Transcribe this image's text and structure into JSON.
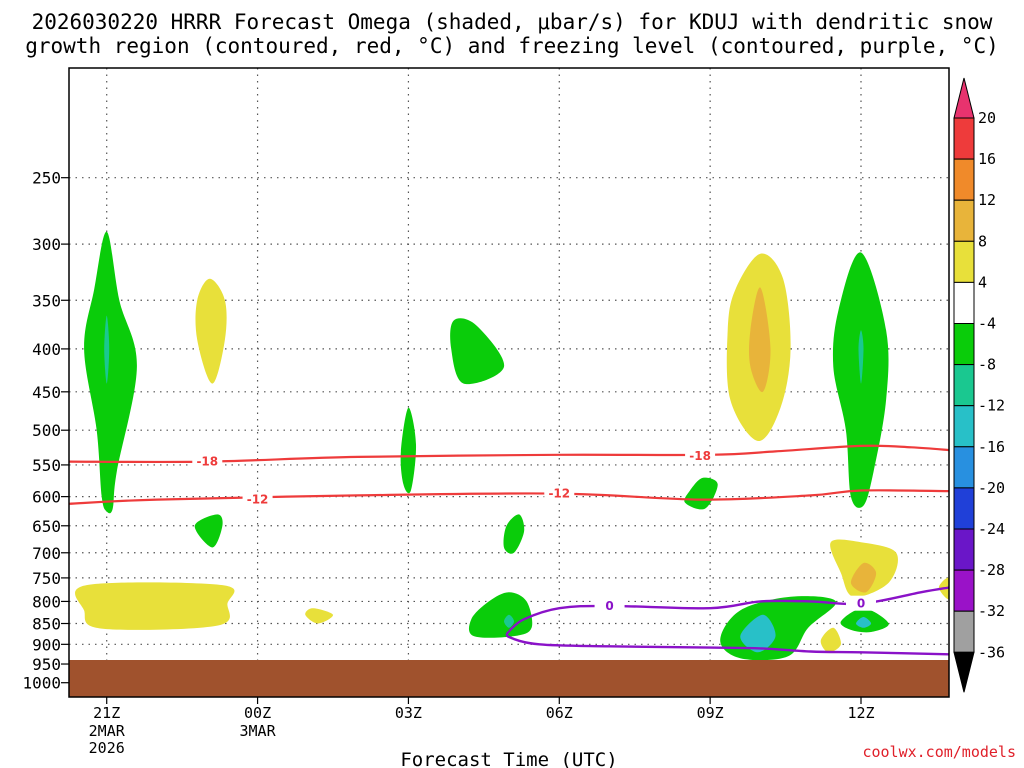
{
  "chart_data": {
    "type": "contour",
    "title_line1": "2026030220 HRRR Forecast Omega (shaded, μbar/s) for KDUJ with dendritic snow",
    "title_line2": "growth region (contoured, red, °C) and freezing level (contoured, purple, °C)",
    "xlabel": "Forecast Time (UTC)",
    "credit": "coolwx.com/models",
    "x_range_hours": [
      -0.75,
      16.75
    ],
    "y_levels_hpa": [
      250,
      300,
      350,
      400,
      450,
      500,
      550,
      600,
      650,
      700,
      750,
      800,
      850,
      900,
      950,
      1000
    ],
    "y_range_hpa": [
      185,
      1040
    ],
    "x_ticks": [
      {
        "hour": 0,
        "label": "21Z",
        "sub": [
          "2MAR",
          "2026"
        ]
      },
      {
        "hour": 3,
        "label": "00Z",
        "sub": [
          "3MAR"
        ]
      },
      {
        "hour": 6,
        "label": "03Z",
        "sub": []
      },
      {
        "hour": 9,
        "label": "06Z",
        "sub": []
      },
      {
        "hour": 12,
        "label": "09Z",
        "sub": []
      },
      {
        "hour": 15,
        "label": "12Z",
        "sub": []
      }
    ],
    "colorbar": {
      "labels": [
        "20",
        "16",
        "12",
        "8",
        "4",
        "-4",
        "-8",
        "-12",
        "-16",
        "-20",
        "-24",
        "-28",
        "-32",
        "-36"
      ],
      "colors": [
        "#e8336e",
        "#ee3b3b",
        "#f08a2a",
        "#e8b43a",
        "#e8e03a",
        "#ffffff",
        "#0acc0a",
        "#1ac890",
        "#28c0c8",
        "#2890e0",
        "#2040d8",
        "#6a16c8",
        "#9a12c8",
        "#a0a0a0",
        "#000000"
      ]
    },
    "omega_blobs": [
      {
        "name": "omega-blob-21z-upper",
        "value_range": "-4 to -8",
        "color": "#0acc0a",
        "pts": [
          [
            0,
            290
          ],
          [
            0.25,
            350
          ],
          [
            0.6,
            420
          ],
          [
            0.2,
            560
          ],
          [
            0.12,
            620
          ],
          [
            0,
            625
          ],
          [
            -0.1,
            600
          ],
          [
            -0.2,
            500
          ],
          [
            -0.45,
            400
          ],
          [
            -0.25,
            340
          ]
        ]
      },
      {
        "name": "omega-blob-21z-core",
        "value_range": "-8 to -12",
        "color": "#1ac890",
        "pts": [
          [
            0,
            365
          ],
          [
            0.05,
            400
          ],
          [
            0,
            440
          ],
          [
            -0.05,
            400
          ]
        ]
      },
      {
        "name": "omega-blob-2z-upward",
        "value_range": "4 to 8",
        "color": "#e8e03a",
        "pts": [
          [
            2.05,
            330
          ],
          [
            2.35,
            350
          ],
          [
            2.35,
            390
          ],
          [
            2.1,
            440
          ],
          [
            1.8,
            390
          ],
          [
            1.8,
            350
          ]
        ]
      },
      {
        "name": "omega-blob-21z-low",
        "value_range": "4 to 8",
        "color": "#e8e03a",
        "pts": [
          [
            -0.4,
            765
          ],
          [
            2.3,
            765
          ],
          [
            2.4,
            805
          ],
          [
            2.2,
            855
          ],
          [
            -0.1,
            862
          ],
          [
            -0.45,
            820
          ]
        ]
      },
      {
        "name": "omega-blob-02z-mid",
        "value_range": "-4 to -8",
        "color": "#0acc0a",
        "pts": [
          [
            2.2,
            630
          ],
          [
            2.3,
            650
          ],
          [
            2.1,
            690
          ],
          [
            1.75,
            650
          ]
        ]
      },
      {
        "name": "omega-blob-03z-narrow",
        "value_range": "-4 to -8",
        "color": "#0acc0a",
        "pts": [
          [
            6,
            470
          ],
          [
            6.15,
            520
          ],
          [
            6.05,
            590
          ],
          [
            5.9,
            580
          ],
          [
            5.85,
            530
          ]
        ]
      },
      {
        "name": "omega-blob-04z-small",
        "value_range": "4 to 8",
        "color": "#e8e03a",
        "pts": [
          [
            4.1,
            815
          ],
          [
            4.5,
            830
          ],
          [
            4.2,
            850
          ],
          [
            3.95,
            830
          ]
        ]
      },
      {
        "name": "omega-blob-07z-upper",
        "value_range": "-4 to -8",
        "color": "#0acc0a",
        "pts": [
          [
            6.9,
            370
          ],
          [
            7.35,
            375
          ],
          [
            7.9,
            420
          ],
          [
            7.1,
            440
          ],
          [
            6.85,
            400
          ]
        ]
      },
      {
        "name": "omega-blob-09z-mid",
        "value_range": "-4 to -8",
        "color": "#0acc0a",
        "pts": [
          [
            11.85,
            570
          ],
          [
            12.15,
            580
          ],
          [
            11.9,
            620
          ],
          [
            11.5,
            610
          ],
          [
            11.6,
            590
          ]
        ]
      },
      {
        "name": "omega-blob-08z-mid",
        "value_range": "-4 to -8",
        "color": "#0acc0a",
        "pts": [
          [
            8.2,
            630
          ],
          [
            8.3,
            660
          ],
          [
            8.1,
            700
          ],
          [
            7.9,
            690
          ],
          [
            7.95,
            650
          ]
        ]
      },
      {
        "name": "omega-blob-08z-low",
        "value_range": "-4 to -8",
        "color": "#0acc0a",
        "pts": [
          [
            8,
            780
          ],
          [
            8.35,
            800
          ],
          [
            8.45,
            860
          ],
          [
            8.1,
            880
          ],
          [
            7.3,
            880
          ],
          [
            7.25,
            840
          ],
          [
            7.6,
            800
          ]
        ]
      },
      {
        "name": "omega-blob-08z-low-core",
        "value_range": "-8 to -12",
        "color": "#1ac890",
        "pts": [
          [
            8,
            830
          ],
          [
            8.1,
            845
          ],
          [
            8,
            860
          ],
          [
            7.9,
            845
          ]
        ]
      },
      {
        "name": "omega-blob-10z-upward",
        "value_range": "4 to 8",
        "color": "#e8e03a",
        "pts": [
          [
            13,
            308
          ],
          [
            13.45,
            330
          ],
          [
            13.6,
            400
          ],
          [
            13.4,
            470
          ],
          [
            12.95,
            515
          ],
          [
            12.4,
            460
          ],
          [
            12.35,
            380
          ],
          [
            12.5,
            340
          ]
        ]
      },
      {
        "name": "omega-blob-10z-upward-core",
        "value_range": "8 to 12",
        "color": "#e8b43a",
        "pts": [
          [
            13,
            338
          ],
          [
            13.2,
            400
          ],
          [
            13.05,
            450
          ],
          [
            12.8,
            420
          ],
          [
            12.8,
            380
          ]
        ]
      },
      {
        "name": "omega-blob-10z-low",
        "value_range": "-4 to -8",
        "color": "#0acc0a",
        "pts": [
          [
            13.6,
            790
          ],
          [
            14.5,
            800
          ],
          [
            13.95,
            860
          ],
          [
            13.55,
            930
          ],
          [
            12.6,
            935
          ],
          [
            12.2,
            890
          ],
          [
            12.6,
            820
          ]
        ]
      },
      {
        "name": "omega-blob-10z-low-core",
        "value_range": "-12 to -16",
        "color": "#28c0c8",
        "pts": [
          [
            13.05,
            830
          ],
          [
            13.3,
            880
          ],
          [
            12.95,
            920
          ],
          [
            12.6,
            880
          ]
        ]
      },
      {
        "name": "omega-blob-11z-small",
        "value_range": "4 to 8",
        "color": "#e8e03a",
        "pts": [
          [
            14.45,
            860
          ],
          [
            14.6,
            900
          ],
          [
            14.35,
            920
          ],
          [
            14.2,
            890
          ]
        ]
      },
      {
        "name": "omega-blob-12z-upper",
        "value_range": "-4 to -8",
        "color": "#0acc0a",
        "pts": [
          [
            15,
            307
          ],
          [
            15.5,
            380
          ],
          [
            15.5,
            460
          ],
          [
            15.25,
            560
          ],
          [
            15.05,
            615
          ],
          [
            14.8,
            600
          ],
          [
            14.7,
            500
          ],
          [
            14.45,
            420
          ],
          [
            14.55,
            360
          ]
        ]
      },
      {
        "name": "omega-blob-12z-upper-core",
        "value_range": "-8 to -12",
        "color": "#1ac890",
        "pts": [
          [
            15,
            380
          ],
          [
            15.05,
            400
          ],
          [
            15,
            440
          ],
          [
            14.95,
            400
          ]
        ]
      },
      {
        "name": "omega-blob-12z-mid",
        "value_range": "4 to 8",
        "color": "#e8e03a",
        "pts": [
          [
            15,
            680
          ],
          [
            15.7,
            700
          ],
          [
            15.55,
            760
          ],
          [
            14.85,
            790
          ],
          [
            14.6,
            740
          ],
          [
            14.4,
            680
          ]
        ]
      },
      {
        "name": "omega-blob-12z-mid-core",
        "value_range": "8 to 12",
        "color": "#e8b43a",
        "pts": [
          [
            15.05,
            720
          ],
          [
            15.3,
            740
          ],
          [
            15.1,
            780
          ],
          [
            14.8,
            760
          ]
        ]
      },
      {
        "name": "omega-blob-12z-low",
        "value_range": "-4 to -8",
        "color": "#0acc0a",
        "pts": [
          [
            15.05,
            815
          ],
          [
            15.55,
            850
          ],
          [
            15.2,
            870
          ],
          [
            14.8,
            865
          ],
          [
            14.6,
            845
          ]
        ]
      },
      {
        "name": "omega-blob-12z-low-core",
        "value_range": "-12 to -16",
        "color": "#28c0c8",
        "pts": [
          [
            15.05,
            835
          ],
          [
            15.2,
            850
          ],
          [
            15.05,
            860
          ],
          [
            14.9,
            850
          ]
        ]
      },
      {
        "name": "omega-blob-14z-edge",
        "value_range": "4 to 8",
        "color": "#e8e03a",
        "pts": [
          [
            16.75,
            750
          ],
          [
            16.55,
            770
          ],
          [
            16.75,
            795
          ]
        ]
      }
    ],
    "isotherms": [
      {
        "name": "isotherm-minus18",
        "label": "-18",
        "color": "#ee3b3b",
        "label_at": [
          [
            2,
            545
          ],
          [
            11.8,
            537
          ]
        ],
        "pts": [
          [
            -0.75,
            545
          ],
          [
            2,
            545
          ],
          [
            5,
            538
          ],
          [
            9,
            535
          ],
          [
            12,
            535
          ],
          [
            13.3,
            530
          ],
          [
            15,
            522
          ],
          [
            16,
            524
          ],
          [
            16.75,
            528
          ]
        ]
      },
      {
        "name": "isotherm-minus12",
        "label": "-12",
        "color": "#ee3b3b",
        "label_at": [
          [
            3,
            605
          ],
          [
            9,
            595
          ]
        ],
        "pts": [
          [
            -0.75,
            612
          ],
          [
            1,
            605
          ],
          [
            5,
            598
          ],
          [
            9,
            595
          ],
          [
            11.8,
            605
          ],
          [
            14,
            598
          ],
          [
            15,
            590
          ],
          [
            16.75,
            591
          ]
        ]
      }
    ],
    "freezing_level": {
      "name": "freezing-level-0c",
      "label": "0",
      "color": "#8a12c8",
      "label_at": [
        [
          10,
          810
        ],
        [
          15,
          805
        ]
      ],
      "lines": [
        [
          [
            -0.75,
            952
          ],
          [
            0,
            950
          ],
          [
            1.2,
            955
          ]
        ],
        [
          [
            8,
            868
          ],
          [
            8.3,
            840
          ],
          [
            9,
            815
          ],
          [
            10,
            810
          ],
          [
            12,
            815
          ],
          [
            13,
            800
          ],
          [
            14,
            800
          ],
          [
            15,
            805
          ],
          [
            16.2,
            780
          ],
          [
            16.75,
            770
          ]
        ],
        [
          [
            8,
            868
          ],
          [
            8,
            882
          ],
          [
            8.6,
            900
          ],
          [
            10,
            905
          ],
          [
            12,
            908
          ],
          [
            13,
            910
          ],
          [
            14,
            918
          ],
          [
            15,
            920
          ],
          [
            16.75,
            925
          ]
        ]
      ]
    },
    "terrain_color": "#a0522d"
  }
}
